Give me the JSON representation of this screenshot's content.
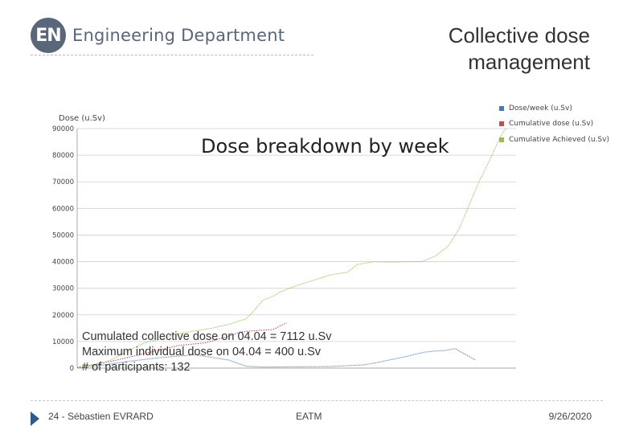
{
  "header": {
    "logo_badge": "EN",
    "logo_text": "Engineering Department",
    "title_line1": "Collective dose",
    "title_line2": "management"
  },
  "notes": [
    "Cumulated collective dose on 04.04 = 7112 u.Sv",
    "Maximum individual dose on 04.04 = 400 u.Sv",
    "# of participants: 132"
  ],
  "footer": {
    "left": "24 - Sébastien EVRARD",
    "middle": "EATM",
    "right": "9/26/2020"
  },
  "chart_data": {
    "type": "line",
    "title": "Dose breakdown by week",
    "ylabel": "Dose (u.Sv)",
    "xlabel": "",
    "ylim": [
      0,
      90000
    ],
    "yticks": [
      0,
      10000,
      20000,
      30000,
      40000,
      50000,
      60000,
      70000,
      80000,
      90000
    ],
    "ytick_labels": [
      "0",
      "10000",
      "20000",
      "30000",
      "40000",
      "50000",
      "60000",
      "70000",
      "80000",
      "90000"
    ],
    "grid": true,
    "legend_position": "top-right",
    "series": [
      {
        "name": "Dose/week (u.Sv)",
        "color": "#4a7aa9",
        "points": [
          [
            0,
            200
          ],
          [
            8,
            1200
          ],
          [
            15,
            2500
          ],
          [
            25,
            4000
          ],
          [
            35,
            5000
          ],
          [
            45,
            3000
          ],
          [
            50,
            700
          ],
          [
            55,
            400
          ],
          [
            75,
            600
          ],
          [
            85,
            1200
          ],
          [
            90,
            2400
          ],
          [
            95,
            3700
          ],
          [
            98,
            4500
          ],
          [
            100,
            5200
          ],
          [
            103,
            6000
          ],
          [
            106,
            6400
          ],
          [
            109,
            6600
          ],
          [
            112,
            7300
          ],
          [
            114,
            5800
          ],
          [
            116,
            4500
          ],
          [
            118,
            3000
          ]
        ]
      },
      {
        "name": "Cumulative dose (u.Sv)",
        "color": "#c0504d",
        "points": [
          [
            0,
            200
          ],
          [
            10,
            2500
          ],
          [
            20,
            5500
          ],
          [
            30,
            8500
          ],
          [
            38,
            9500
          ],
          [
            45,
            12000
          ],
          [
            48,
            13500
          ],
          [
            52,
            14000
          ],
          [
            58,
            14500
          ],
          [
            62,
            17000
          ]
        ]
      },
      {
        "name": "Cumulative Achieved (u.Sv)",
        "color": "#9bbb59",
        "points": [
          [
            0,
            0
          ],
          [
            5,
            1000
          ],
          [
            10,
            3000
          ],
          [
            15,
            6500
          ],
          [
            20,
            9500
          ],
          [
            25,
            11000
          ],
          [
            30,
            13000
          ],
          [
            35,
            14000
          ],
          [
            40,
            15000
          ],
          [
            45,
            16500
          ],
          [
            50,
            18500
          ],
          [
            52,
            21000
          ],
          [
            55,
            25500
          ],
          [
            58,
            27000
          ],
          [
            60,
            28500
          ],
          [
            65,
            31000
          ],
          [
            70,
            33000
          ],
          [
            75,
            35000
          ],
          [
            80,
            36000
          ],
          [
            83,
            39000
          ],
          [
            88,
            40000
          ],
          [
            93,
            39800
          ],
          [
            98,
            40000
          ],
          [
            102,
            40000
          ],
          [
            106,
            42000
          ],
          [
            110,
            46000
          ],
          [
            113,
            52000
          ],
          [
            115,
            58000
          ],
          [
            117,
            64000
          ],
          [
            119,
            70000
          ],
          [
            121,
            75000
          ],
          [
            123,
            80500
          ],
          [
            125,
            86000
          ],
          [
            126,
            88500
          ],
          [
            127,
            90000
          ]
        ]
      }
    ]
  }
}
